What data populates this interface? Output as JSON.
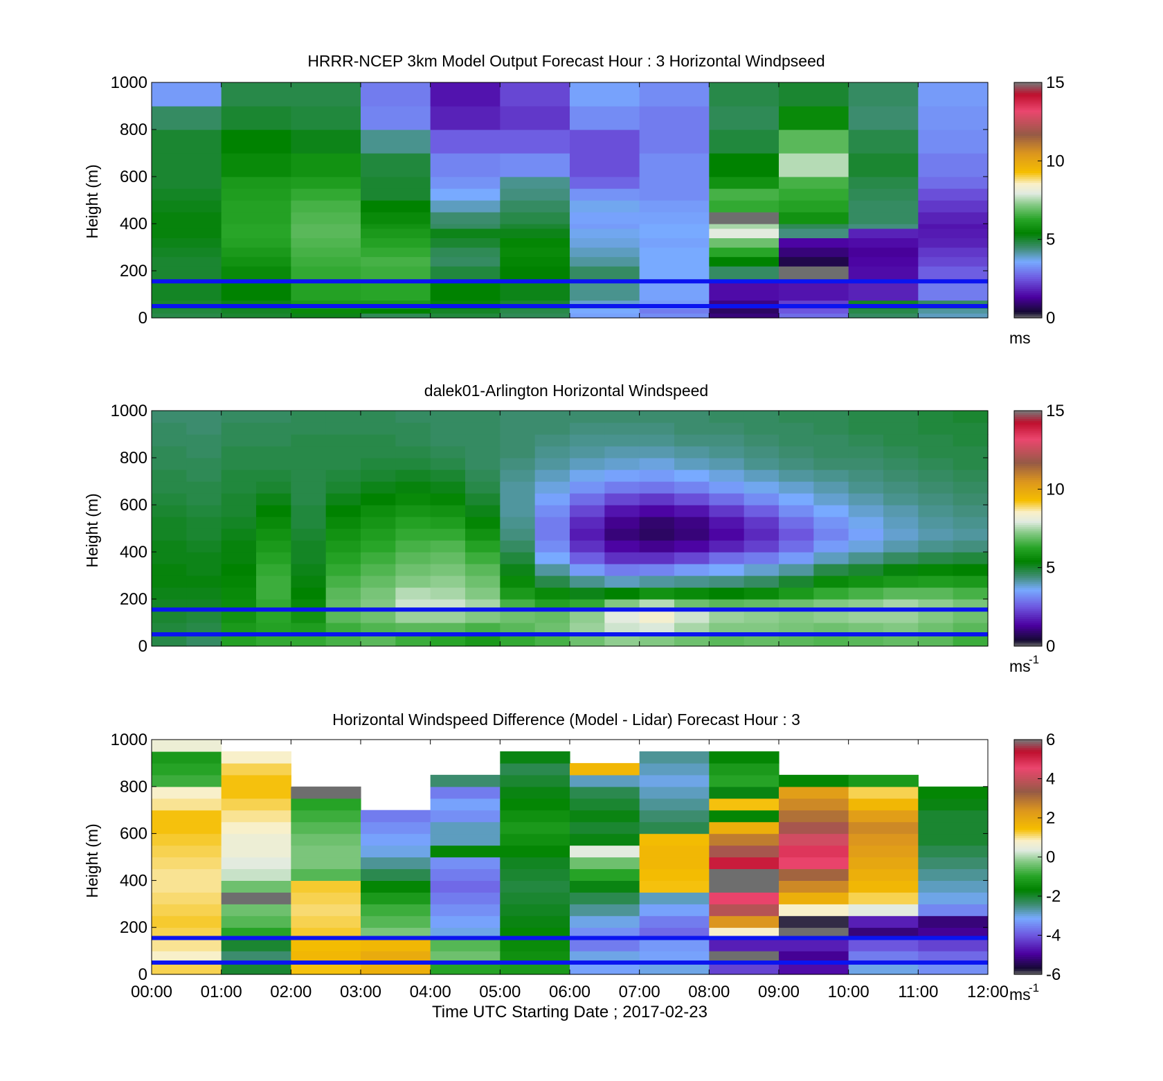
{
  "figure": {
    "xlabel": "Time UTC  Starting Date ; 2017-02-23",
    "x_ticks": [
      "00:00",
      "01:00",
      "02:00",
      "03:00",
      "04:00",
      "05:00",
      "06:00",
      "07:00",
      "08:00",
      "09:00",
      "10:00",
      "11:00",
      "12:00"
    ]
  },
  "chart_data": [
    {
      "type": "heatmap",
      "title": "HRRR-NCEP 3km Model Output   Forecast Hour : 3 Horizontal Windpseed",
      "xlabel": "",
      "ylabel": "Height (m)",
      "xlim": [
        0,
        12
      ],
      "ylim": [
        0,
        1000
      ],
      "y_ticks": [
        0,
        200,
        400,
        600,
        800,
        1000
      ],
      "clim": [
        0,
        15
      ],
      "colorbar_ticks": [
        0,
        5,
        10,
        15
      ],
      "colorbar_unit": "ms",
      "colorbar_unit_sup": "",
      "x_edges": [
        0,
        1,
        2,
        3,
        4,
        5,
        6,
        7,
        8,
        9,
        10,
        11,
        12
      ],
      "y_edges": [
        0,
        20,
        40,
        75,
        150,
        220,
        260,
        300,
        340,
        380,
        400,
        450,
        500,
        550,
        600,
        700,
        800,
        900,
        1000
      ],
      "values": [
        [
          4.8,
          5.0,
          5.2,
          4.7,
          4.9,
          4.7,
          3.5,
          3.2,
          1.0,
          2.8,
          4.6,
          4.0
        ],
        [
          4.9,
          5.1,
          5.6,
          5.4,
          5.1,
          4.8,
          3.6,
          3.0,
          0.8,
          2.5,
          4.8,
          4.2
        ],
        [
          5.0,
          5.2,
          6.0,
          6.0,
          5.3,
          5.0,
          3.9,
          3.4,
          1.1,
          2.2,
          5.1,
          4.6
        ],
        [
          5.1,
          5.4,
          6.2,
          6.3,
          5.4,
          5.2,
          4.3,
          3.5,
          1.5,
          1.6,
          1.8,
          3.0
        ],
        [
          5.0,
          5.6,
          6.4,
          6.5,
          4.9,
          5.4,
          4.6,
          3.6,
          4.6,
          -0.2,
          1.5,
          2.6
        ],
        [
          5.0,
          5.8,
          6.5,
          6.6,
          4.6,
          5.5,
          4.2,
          3.6,
          5.4,
          0.6,
          1.4,
          2.3
        ],
        [
          5.1,
          6.0,
          6.6,
          6.4,
          4.7,
          5.6,
          4.0,
          3.6,
          6.3,
          1.0,
          1.3,
          2.1
        ],
        [
          5.2,
          6.2,
          6.7,
          6.2,
          5.0,
          5.5,
          3.8,
          3.5,
          7.0,
          1.4,
          1.5,
          1.8
        ],
        [
          5.3,
          6.3,
          6.8,
          6.0,
          5.2,
          5.2,
          3.7,
          3.6,
          8.0,
          4.4,
          1.8,
          1.7
        ],
        [
          5.3,
          6.3,
          6.8,
          5.8,
          4.6,
          5.0,
          3.4,
          3.6,
          7.5,
          4.7,
          4.4,
          1.6
        ],
        [
          5.3,
          6.2,
          6.7,
          5.6,
          4.5,
          4.8,
          3.5,
          3.5,
          -0.2,
          5.8,
          4.6,
          1.8
        ],
        [
          5.2,
          6.2,
          6.6,
          5.4,
          4.0,
          4.6,
          3.7,
          3.4,
          6.4,
          6.2,
          4.6,
          2.1
        ],
        [
          5.1,
          6.1,
          6.4,
          5.0,
          3.6,
          4.4,
          3.3,
          3.2,
          6.6,
          6.4,
          4.7,
          2.4
        ],
        [
          5.0,
          6.0,
          6.1,
          5.0,
          3.3,
          4.3,
          2.7,
          3.2,
          5.8,
          6.6,
          4.8,
          2.8
        ],
        [
          5.0,
          5.6,
          5.8,
          4.9,
          3.1,
          3.2,
          2.4,
          3.2,
          5.4,
          7.6,
          5.0,
          3.0
        ],
        [
          5.0,
          5.4,
          5.2,
          4.3,
          2.6,
          2.6,
          2.4,
          3.0,
          4.9,
          6.8,
          4.8,
          3.2
        ],
        [
          4.6,
          5.0,
          4.9,
          3.1,
          1.8,
          2.1,
          3.2,
          3.0,
          4.7,
          5.6,
          4.5,
          3.3
        ],
        [
          3.4,
          4.8,
          4.8,
          3.0,
          1.6,
          2.3,
          3.5,
          3.2,
          4.8,
          5.0,
          4.6,
          3.4
        ]
      ]
    },
    {
      "type": "heatmap",
      "title": "dalek01-Arlington  Horizontal Windspeed",
      "xlabel": "",
      "ylabel": "Height (m)",
      "xlim": [
        0,
        12
      ],
      "ylim": [
        0,
        1000
      ],
      "y_ticks": [
        0,
        200,
        400,
        600,
        800,
        1000
      ],
      "clim": [
        0,
        15
      ],
      "colorbar_ticks": [
        0,
        5,
        10,
        15
      ],
      "colorbar_unit": "ms",
      "colorbar_unit_sup": "-1",
      "x_edges": [
        0,
        0.5,
        1,
        1.5,
        2,
        2.5,
        3,
        3.5,
        4,
        4.5,
        5,
        5.5,
        6,
        6.5,
        7,
        7.5,
        8,
        8.5,
        9,
        9.5,
        10,
        10.5,
        11,
        11.5,
        12
      ],
      "y_edges": [
        0,
        50,
        100,
        150,
        200,
        250,
        300,
        350,
        400,
        450,
        500,
        550,
        600,
        650,
        700,
        750,
        800,
        850,
        900,
        950,
        1000
      ],
      "values": [
        [
          4.8,
          4.6,
          6.2,
          6.4,
          6.4,
          6.6,
          6.8,
          6.5,
          6.3,
          6.0,
          6.4,
          6.6,
          7.0,
          7.3,
          7.2,
          7.0,
          6.8,
          6.9,
          6.8,
          6.7,
          6.8,
          6.9,
          6.8,
          6.5
        ],
        [
          4.9,
          4.8,
          6.0,
          6.2,
          6.1,
          6.5,
          6.7,
          6.8,
          6.8,
          6.6,
          6.8,
          7.0,
          7.4,
          7.8,
          7.9,
          7.5,
          7.2,
          7.2,
          7.1,
          7.0,
          7.1,
          7.2,
          7.0,
          6.8
        ],
        [
          5.0,
          4.9,
          5.8,
          6.3,
          5.8,
          6.8,
          7.0,
          7.4,
          7.4,
          7.2,
          7.0,
          6.9,
          7.3,
          8.0,
          8.4,
          7.8,
          7.4,
          7.3,
          7.2,
          7.3,
          7.4,
          7.4,
          7.2,
          7.0
        ],
        [
          5.1,
          5.1,
          5.7,
          6.4,
          5.6,
          6.9,
          7.2,
          7.8,
          7.8,
          7.5,
          6.6,
          6.2,
          6.4,
          7.2,
          7.6,
          7.0,
          6.8,
          6.9,
          7.0,
          7.2,
          7.3,
          7.5,
          7.3,
          7.1
        ],
        [
          5.2,
          5.2,
          5.6,
          6.5,
          5.4,
          6.8,
          7.1,
          7.6,
          7.5,
          7.2,
          6.0,
          5.6,
          5.2,
          5.4,
          5.8,
          5.6,
          5.4,
          5.6,
          6.0,
          6.4,
          6.6,
          6.8,
          6.8,
          6.6
        ],
        [
          5.3,
          5.3,
          5.5,
          6.5,
          5.3,
          6.6,
          6.9,
          7.2,
          7.3,
          7.0,
          5.6,
          4.8,
          4.3,
          4.0,
          4.2,
          4.3,
          4.4,
          4.6,
          5.0,
          5.6,
          5.8,
          6.0,
          6.1,
          6.0
        ],
        [
          5.3,
          5.2,
          5.4,
          6.4,
          5.2,
          6.4,
          6.7,
          7.0,
          7.1,
          6.8,
          5.2,
          4.2,
          3.4,
          3.0,
          3.1,
          3.4,
          3.6,
          3.9,
          4.2,
          4.8,
          5.0,
          5.3,
          5.5,
          5.4
        ],
        [
          5.2,
          5.2,
          5.3,
          6.2,
          5.1,
          6.2,
          6.5,
          6.8,
          6.9,
          6.5,
          4.9,
          3.6,
          2.6,
          2.0,
          2.0,
          2.3,
          2.8,
          3.0,
          3.4,
          4.0,
          4.3,
          4.6,
          4.8,
          4.9
        ],
        [
          5.2,
          5.1,
          5.3,
          6.0,
          5.1,
          6.0,
          6.3,
          6.6,
          6.7,
          6.2,
          4.6,
          3.2,
          2.0,
          1.4,
          1.2,
          1.4,
          1.8,
          2.2,
          2.8,
          3.4,
          3.8,
          4.1,
          4.3,
          4.4
        ],
        [
          5.1,
          5.0,
          5.2,
          5.8,
          5.0,
          5.8,
          6.1,
          6.4,
          6.4,
          5.8,
          4.4,
          3.0,
          1.7,
          1.0,
          0.8,
          1.0,
          1.4,
          1.9,
          2.5,
          3.1,
          3.5,
          3.9,
          4.1,
          4.2
        ],
        [
          5.1,
          5.0,
          5.1,
          5.6,
          4.9,
          5.6,
          5.9,
          6.2,
          6.1,
          5.5,
          4.3,
          3.0,
          1.9,
          1.2,
          0.9,
          1.1,
          1.6,
          2.1,
          2.8,
          3.3,
          3.7,
          4.0,
          4.2,
          4.3
        ],
        [
          5.0,
          4.9,
          5.0,
          5.4,
          4.9,
          5.4,
          5.7,
          5.9,
          5.8,
          5.2,
          4.2,
          3.2,
          2.3,
          1.6,
          1.4,
          1.6,
          2.1,
          2.6,
          3.2,
          3.6,
          3.9,
          4.1,
          4.3,
          4.4
        ],
        [
          4.9,
          4.8,
          5.0,
          5.2,
          4.8,
          5.2,
          5.4,
          5.6,
          5.5,
          5.0,
          4.2,
          3.5,
          2.8,
          2.3,
          2.1,
          2.4,
          2.8,
          3.2,
          3.6,
          3.9,
          4.1,
          4.3,
          4.4,
          4.5
        ],
        [
          4.8,
          4.8,
          4.9,
          5.0,
          4.8,
          5.0,
          5.2,
          5.3,
          5.2,
          4.8,
          4.2,
          3.8,
          3.3,
          3.0,
          2.9,
          3.1,
          3.4,
          3.7,
          3.9,
          4.1,
          4.3,
          4.4,
          4.5,
          4.6
        ],
        [
          4.8,
          4.7,
          4.9,
          4.9,
          4.8,
          4.9,
          5.0,
          5.1,
          5.0,
          4.7,
          4.3,
          4.0,
          3.7,
          3.5,
          3.4,
          3.6,
          3.8,
          4.0,
          4.2,
          4.3,
          4.4,
          4.5,
          4.6,
          4.7
        ],
        [
          4.7,
          4.7,
          4.8,
          4.8,
          4.8,
          4.8,
          4.9,
          4.9,
          4.8,
          4.6,
          4.4,
          4.2,
          4.0,
          3.9,
          3.8,
          4.0,
          4.1,
          4.3,
          4.4,
          4.5,
          4.5,
          4.6,
          4.7,
          4.8
        ],
        [
          4.7,
          4.6,
          4.8,
          4.8,
          4.8,
          4.8,
          4.8,
          4.8,
          4.7,
          4.6,
          4.5,
          4.3,
          4.2,
          4.1,
          4.1,
          4.2,
          4.3,
          4.4,
          4.5,
          4.6,
          4.6,
          4.7,
          4.8,
          4.8
        ],
        [
          4.6,
          4.6,
          4.7,
          4.7,
          4.8,
          4.8,
          4.8,
          4.7,
          4.6,
          4.6,
          4.5,
          4.4,
          4.3,
          4.3,
          4.3,
          4.4,
          4.4,
          4.5,
          4.6,
          4.6,
          4.7,
          4.8,
          4.8,
          4.9
        ],
        [
          4.6,
          4.5,
          4.7,
          4.7,
          4.7,
          4.7,
          4.7,
          4.7,
          4.6,
          4.6,
          4.5,
          4.5,
          4.4,
          4.4,
          4.4,
          4.5,
          4.5,
          4.6,
          4.6,
          4.7,
          4.8,
          4.8,
          4.9,
          4.9
        ],
        [
          4.5,
          4.5,
          4.6,
          4.6,
          4.7,
          4.7,
          4.7,
          4.6,
          4.6,
          4.6,
          4.5,
          4.5,
          4.5,
          4.5,
          4.5,
          4.5,
          4.6,
          4.6,
          4.7,
          4.7,
          4.8,
          4.8,
          4.9,
          5.0
        ]
      ]
    },
    {
      "type": "heatmap",
      "title": "Horizontal Windspeed Difference (Model - Lidar) Forecast Hour : 3",
      "xlabel": "Time UTC  Starting Date ; 2017-02-23",
      "ylabel": "Height (m)",
      "xlim": [
        0,
        12
      ],
      "ylim": [
        0,
        1000
      ],
      "y_ticks": [
        0,
        200,
        400,
        600,
        800,
        1000
      ],
      "clim": [
        -6,
        6
      ],
      "colorbar_ticks": [
        -6,
        -4,
        -2,
        0,
        2,
        4,
        6
      ],
      "colorbar_unit": "ms",
      "colorbar_unit_sup": "-1",
      "x_edges": [
        0,
        1,
        2,
        3,
        4,
        5,
        6,
        7,
        8,
        9,
        10,
        11,
        12
      ],
      "y_edges": [
        0,
        50,
        100,
        150,
        200,
        250,
        300,
        350,
        400,
        450,
        500,
        550,
        600,
        650,
        700,
        750,
        800,
        850,
        900,
        950,
        1000
      ],
      "values": [
        [
          1.2,
          -2.0,
          1.4,
          1.8,
          -1.0,
          -1.2,
          -3.2,
          -3.0,
          -4.2,
          -4.8,
          -3.0,
          -3.4
        ],
        [
          0.8,
          -2.4,
          1.6,
          1.9,
          -0.4,
          -1.4,
          -3.0,
          -3.2,
          -6.5,
          -5.0,
          -3.6,
          -3.8
        ],
        [
          1.0,
          -2.0,
          1.5,
          1.6,
          -0.6,
          -1.5,
          -3.6,
          -3.3,
          -4.6,
          -4.6,
          -4.0,
          -4.2
        ],
        [
          1.2,
          -1.0,
          1.3,
          -0.3,
          -3.0,
          -1.6,
          -3.4,
          -3.8,
          0.8,
          -6.5,
          -5.2,
          -5.0
        ],
        [
          1.3,
          -0.6,
          1.2,
          -0.6,
          -3.2,
          -1.8,
          -3.0,
          -3.6,
          2.4,
          -5.8,
          -4.6,
          -5.2
        ],
        [
          1.2,
          -0.4,
          1.1,
          -0.8,
          -3.4,
          -1.9,
          -2.6,
          -3.2,
          3.8,
          0.8,
          0.4,
          -3.5
        ],
        [
          1.1,
          -6.5,
          1.2,
          -1.2,
          -3.6,
          -2.0,
          -2.2,
          -2.8,
          4.6,
          1.8,
          1.2,
          -3.0
        ],
        [
          1.0,
          -0.4,
          1.3,
          -1.6,
          -3.8,
          -2.1,
          -1.8,
          1.4,
          -6.5,
          2.6,
          1.6,
          -2.8
        ],
        [
          1.0,
          0.2,
          -0.6,
          -2.2,
          -3.6,
          -2.0,
          -1.0,
          1.5,
          -6.5,
          3.2,
          1.8,
          -2.6
        ],
        [
          1.1,
          0.4,
          -0.3,
          -2.6,
          -3.4,
          -1.9,
          -0.4,
          1.6,
          5.2,
          4.6,
          2.0,
          -2.4
        ],
        [
          1.2,
          0.6,
          -0.3,
          -3.0,
          -1.6,
          -1.6,
          0.4,
          1.6,
          3.6,
          4.8,
          2.2,
          -2.2
        ],
        [
          1.3,
          0.6,
          -0.4,
          -3.2,
          -2.8,
          -1.4,
          -1.8,
          1.5,
          2.8,
          4.2,
          2.4,
          -2.0
        ],
        [
          1.4,
          0.8,
          -0.6,
          -3.4,
          -2.8,
          -1.2,
          -2.0,
          -2.2,
          1.8,
          3.6,
          2.6,
          -2.0
        ],
        [
          1.4,
          1.0,
          -0.8,
          -3.6,
          -3.4,
          -1.4,
          -1.8,
          -2.4,
          -1.6,
          3.0,
          2.2,
          -2.0
        ],
        [
          1.0,
          1.2,
          -1.0,
          null,
          -3.2,
          -1.6,
          -2.0,
          -2.6,
          1.4,
          2.6,
          1.6,
          -1.8
        ],
        [
          0.8,
          1.4,
          -6.5,
          null,
          -3.6,
          -1.8,
          -2.2,
          -2.8,
          -1.8,
          2.2,
          1.2,
          -1.6
        ],
        [
          -0.8,
          1.4,
          null,
          null,
          -2.4,
          -2.0,
          -2.8,
          -3.0,
          -1.0,
          -1.6,
          -1.2,
          null
        ],
        [
          -1.0,
          1.2,
          null,
          null,
          null,
          -2.2,
          1.6,
          -2.8,
          -1.2,
          null,
          null,
          null
        ],
        [
          -1.2,
          0.8,
          null,
          null,
          null,
          -1.8,
          null,
          -2.6,
          -1.6,
          null,
          null,
          null
        ],
        [
          0.6,
          null,
          null,
          null,
          null,
          null,
          null,
          null,
          null,
          null,
          null,
          null
        ]
      ]
    }
  ],
  "reference_lines_m": [
    50,
    155
  ]
}
